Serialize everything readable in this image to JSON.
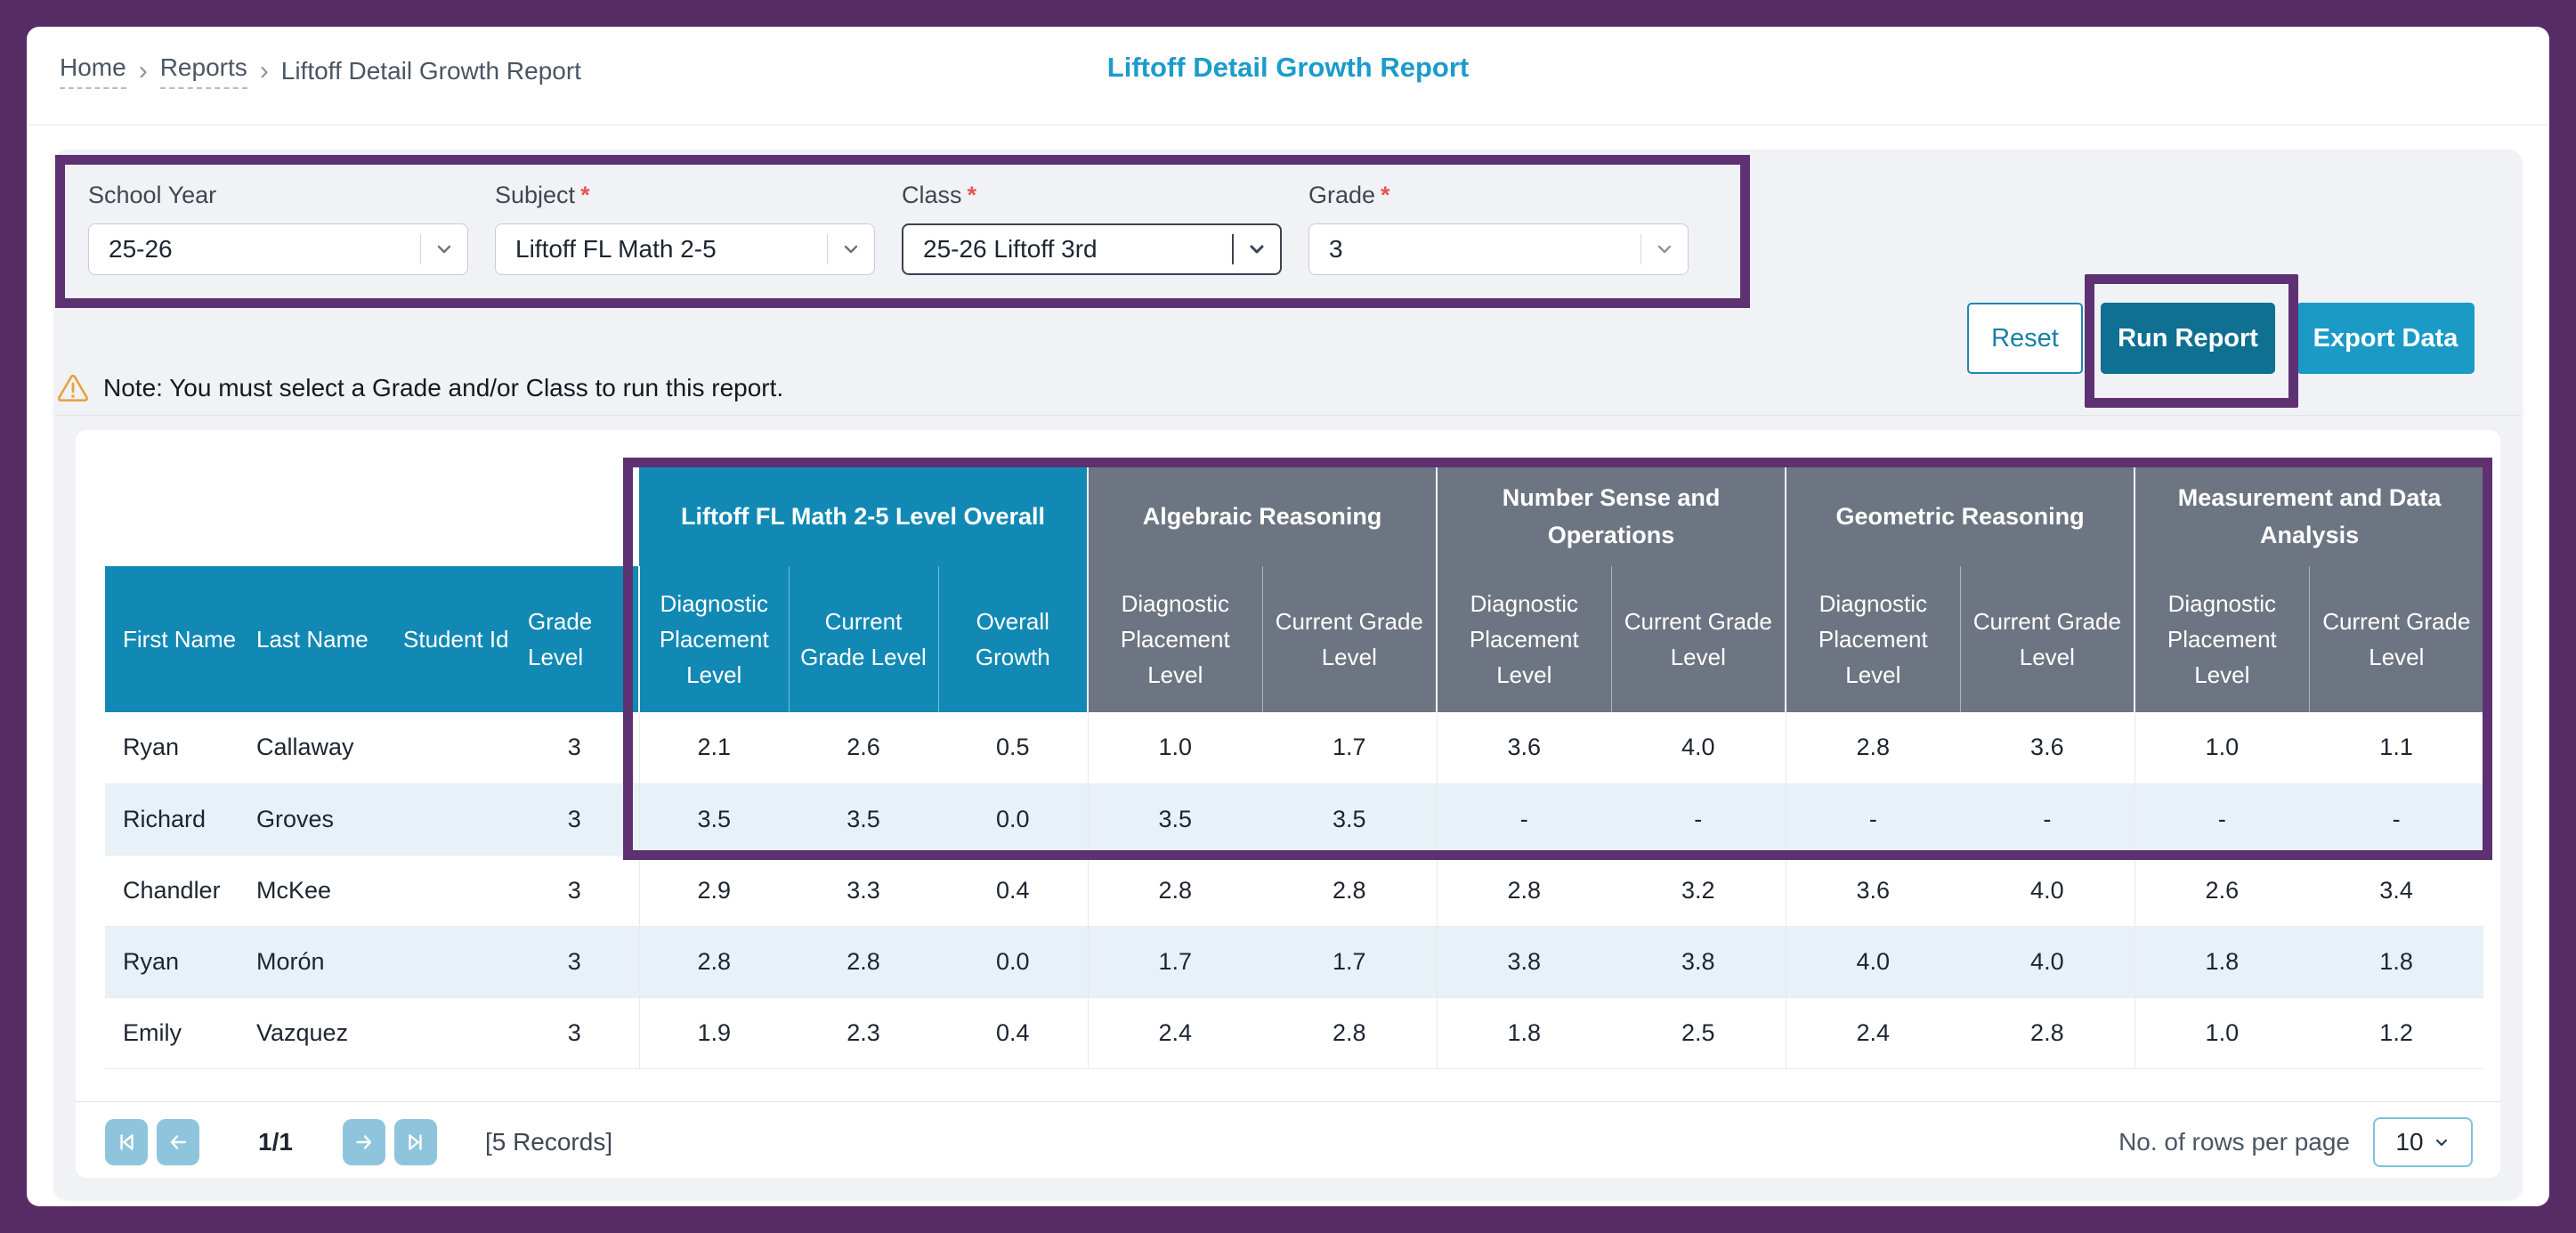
{
  "title": "Liftoff Detail Growth Report",
  "breadcrumb": {
    "separator": "›",
    "items": [
      {
        "label": "Home"
      },
      {
        "label": "Reports"
      },
      {
        "label": "Liftoff Detail Growth Report"
      }
    ]
  },
  "filters": {
    "items": [
      {
        "label": "School Year",
        "required_mark": "",
        "value": "25-26"
      },
      {
        "label": "Subject",
        "required_mark": "*",
        "value": "Liftoff FL Math 2-5"
      },
      {
        "label": "Class",
        "required_mark": "*",
        "value": "25-26 Liftoff 3rd"
      },
      {
        "label": "Grade",
        "required_mark": "*",
        "value": "3"
      }
    ]
  },
  "actions": {
    "reset": "Reset",
    "run": "Run Report",
    "export": "Export Data"
  },
  "note": {
    "text": "Note: You must select a Grade and/or Class to run this report."
  },
  "table": {
    "groups": [
      {
        "label": "Liftoff FL Math 2-5 Level Overall",
        "span": 3
      },
      {
        "label": "Algebraic Reasoning",
        "span": 2
      },
      {
        "label": "Number Sense and Operations",
        "span": 2
      },
      {
        "label": "Geometric Reasoning",
        "span": 2
      },
      {
        "label": "Measurement and Data Analysis",
        "span": 2
      }
    ],
    "columns": [
      "First Name",
      "Last Name",
      "Student Id",
      "Grade Level",
      "Diagnostic Placement Level",
      "Current Grade Level",
      "Overall Growth",
      "Diagnostic Placement Level",
      "Current Grade Level",
      "Diagnostic Placement Level",
      "Current Grade Level",
      "Diagnostic Placement Level",
      "Current Grade Level",
      "Diagnostic Placement Level",
      "Current Grade Level"
    ],
    "rows": [
      {
        "cells": [
          "Ryan",
          "Callaway",
          "",
          "3",
          "2.1",
          "2.6",
          "0.5",
          "1.0",
          "1.7",
          "3.6",
          "4.0",
          "2.8",
          "3.6",
          "1.0",
          "1.1"
        ]
      },
      {
        "cells": [
          "Richard",
          "Groves",
          "",
          "3",
          "3.5",
          "3.5",
          "0.0",
          "3.5",
          "3.5",
          "-",
          "-",
          "-",
          "-",
          "-",
          "-"
        ]
      },
      {
        "cells": [
          "Chandler",
          "McKee",
          "",
          "3",
          "2.9",
          "3.3",
          "0.4",
          "2.8",
          "2.8",
          "2.8",
          "3.2",
          "3.6",
          "4.0",
          "2.6",
          "3.4"
        ]
      },
      {
        "cells": [
          "Ryan",
          "Morón",
          "",
          "3",
          "2.8",
          "2.8",
          "0.0",
          "1.7",
          "1.7",
          "3.8",
          "3.8",
          "4.0",
          "4.0",
          "1.8",
          "1.8"
        ]
      },
      {
        "cells": [
          "Emily",
          "Vazquez",
          "",
          "3",
          "1.9",
          "2.3",
          "0.4",
          "2.4",
          "2.8",
          "1.8",
          "2.5",
          "2.4",
          "2.8",
          "1.0",
          "1.2"
        ]
      }
    ]
  },
  "pager": {
    "page_label": "1/1",
    "records_label": "[5 Records]",
    "rows_per_page_label": "No. of rows per page",
    "rows_per_page_value": "10"
  },
  "colors": {
    "annotation_purple": "#5e3173",
    "frame_purple": "#572b63",
    "header_teal": "#1189b4",
    "header_gray": "#6e7582",
    "title_teal": "#1b9ccb",
    "run_button": "#0f7092",
    "export_button": "#1b9ac6",
    "row_stripe": "#e9f1f8",
    "warning_amber": "#e8a23c"
  }
}
